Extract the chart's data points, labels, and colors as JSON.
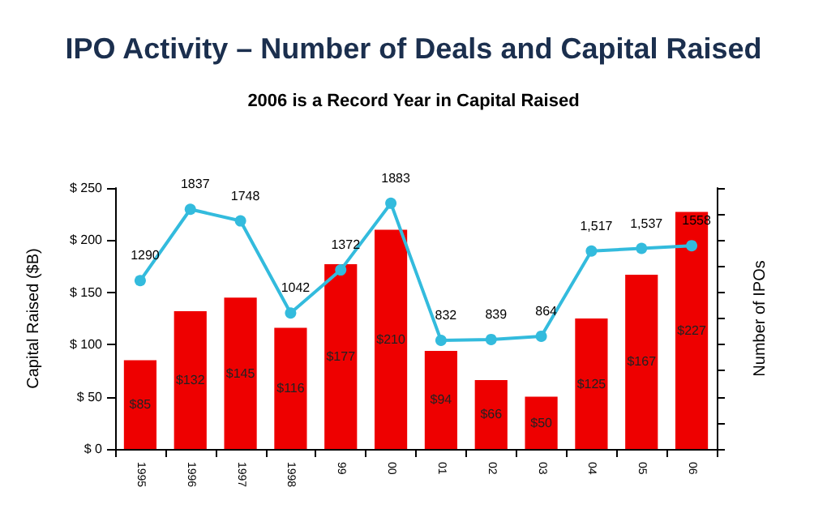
{
  "chart_data": {
    "type": "bar",
    "title": "IPO Activity – Number of Deals and Capital Raised",
    "subtitle": "2006 is a Record Year in Capital Raised",
    "ylabel": "Capital Raised ($B)",
    "y2label": "Number of IPOs",
    "categories": [
      "1995",
      "1996",
      "1997",
      "1998",
      "99",
      "00",
      "01",
      "02",
      "03",
      "04",
      "05",
      "06"
    ],
    "series": [
      {
        "color": "#ee0000",
        "values": [
          85,
          132,
          145,
          116,
          177,
          210,
          94,
          66,
          50,
          125,
          167,
          227
        ],
        "value_labels": [
          "$85",
          "$132",
          "$145",
          "$116",
          "$177",
          "$210",
          "$94",
          "$66",
          "$50",
          "$125",
          "$167",
          "$227"
        ]
      },
      {
        "type": "line",
        "axis": "y2",
        "color": "#33bbdd",
        "values": [
          1290,
          1837,
          1748,
          1042,
          1372,
          1883,
          832,
          839,
          864,
          1517,
          1537,
          1558
        ],
        "value_labels": [
          "1290",
          "1837",
          "1748",
          "1042",
          "1372",
          "1883",
          "832",
          "839",
          "864",
          "1,517",
          "1,537",
          "1558"
        ]
      }
    ],
    "ylim": [
      0,
      250
    ],
    "yticks": [
      {
        "value": 0,
        "label": "$ 0"
      },
      {
        "value": 50,
        "label": "$ 50"
      },
      {
        "value": 100,
        "label": "$ 100"
      },
      {
        "value": 150,
        "label": "$ 150"
      },
      {
        "value": 200,
        "label": "$ 200"
      },
      {
        "value": 250,
        "label": "$ 250"
      }
    ],
    "y2lim": [
      0,
      2000
    ],
    "y2ticks": [
      {
        "value": 0,
        "label": null
      },
      {
        "value": 200,
        "label": null
      },
      {
        "value": 400,
        "label": null
      },
      {
        "value": 600,
        "label": null
      },
      {
        "value": 800,
        "label": null
      },
      {
        "value": 1000,
        "label": null
      },
      {
        "value": 1200,
        "label": null
      },
      {
        "value": 1400,
        "label": null
      },
      {
        "value": 1600,
        "label": null
      },
      {
        "value": 1800,
        "label": null
      },
      {
        "value": 2000,
        "label": null
      }
    ],
    "marker": "circle",
    "grid": false
  }
}
